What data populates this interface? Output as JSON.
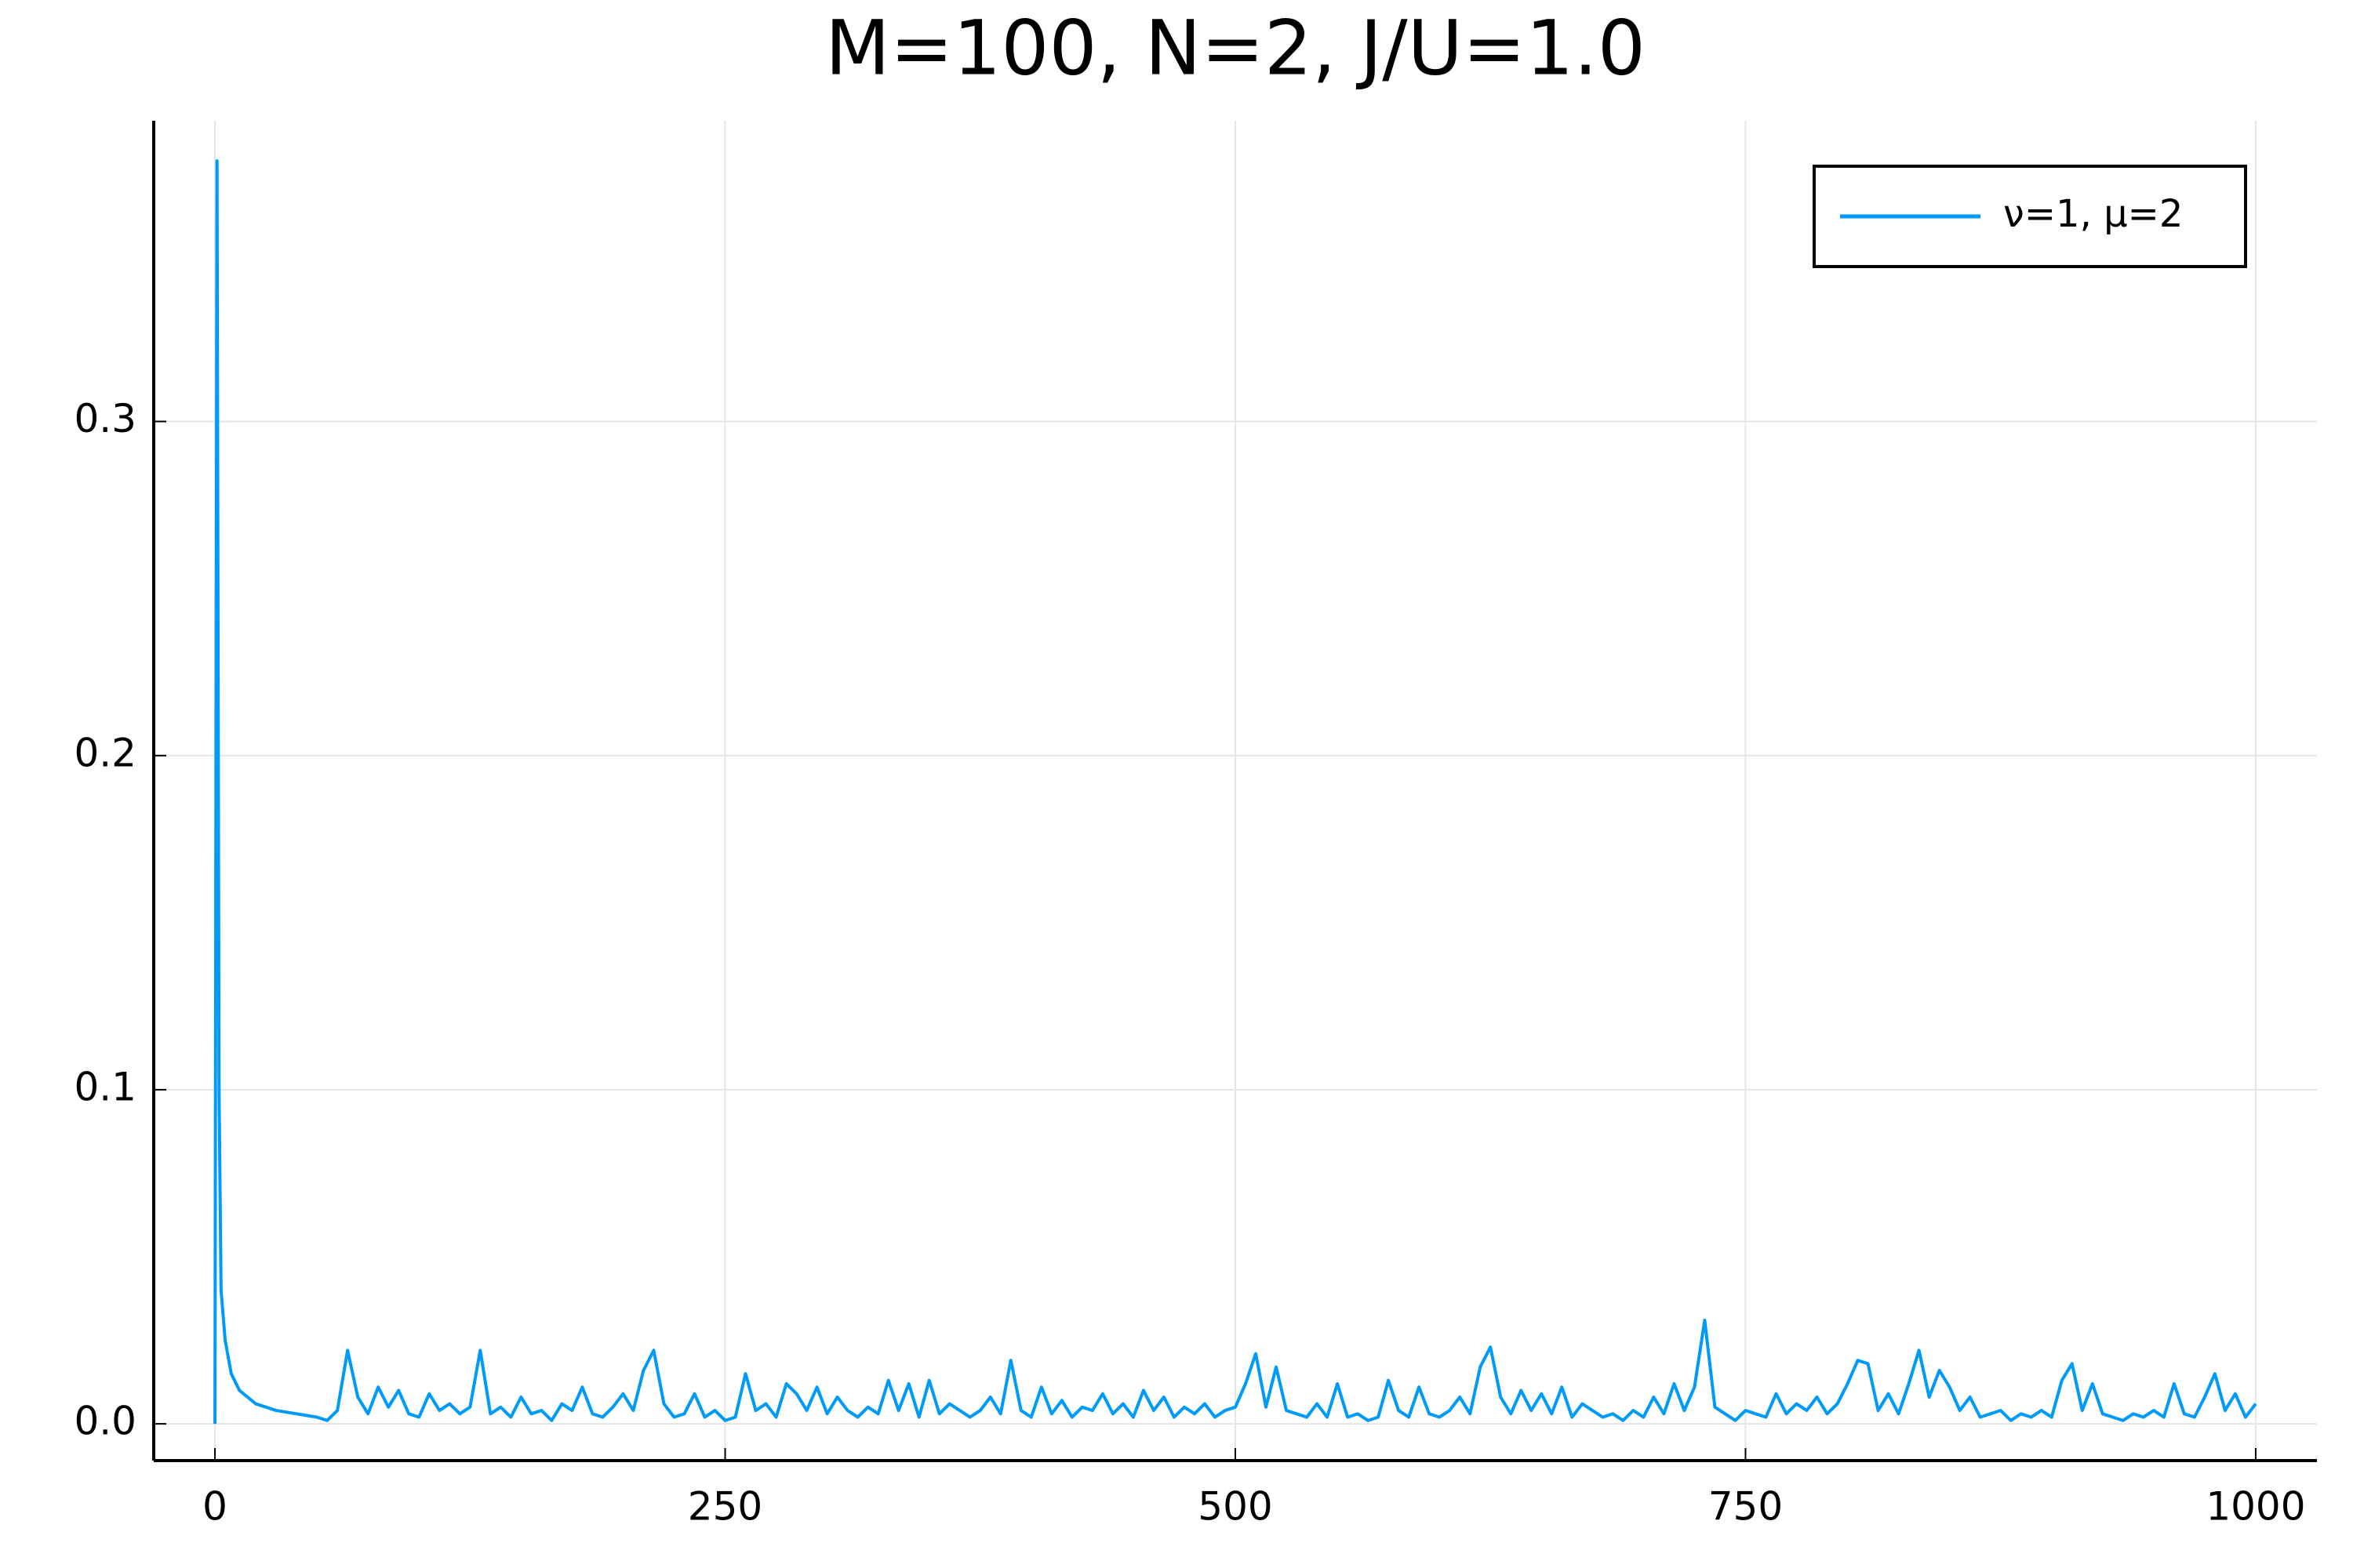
{
  "chart_data": {
    "type": "line",
    "title": "M=100, N=2, J/U=1.0",
    "x": [
      0,
      1,
      2,
      3,
      5,
      8,
      12,
      20,
      30,
      40,
      50,
      55,
      60,
      65,
      70,
      75,
      80,
      85,
      90,
      95,
      100,
      105,
      110,
      115,
      120,
      125,
      130,
      135,
      140,
      145,
      150,
      155,
      160,
      165,
      170,
      175,
      180,
      185,
      190,
      195,
      200,
      205,
      210,
      215,
      220,
      225,
      230,
      235,
      240,
      245,
      250,
      255,
      260,
      265,
      270,
      275,
      280,
      285,
      290,
      295,
      300,
      305,
      310,
      315,
      320,
      325,
      330,
      335,
      340,
      345,
      350,
      355,
      360,
      365,
      370,
      375,
      380,
      385,
      390,
      395,
      400,
      405,
      410,
      415,
      420,
      425,
      430,
      435,
      440,
      445,
      450,
      455,
      460,
      465,
      470,
      475,
      480,
      485,
      490,
      495,
      500,
      505,
      510,
      515,
      520,
      525,
      530,
      535,
      540,
      545,
      550,
      555,
      560,
      565,
      570,
      575,
      580,
      585,
      590,
      595,
      600,
      605,
      610,
      615,
      620,
      625,
      630,
      635,
      640,
      645,
      650,
      655,
      660,
      665,
      670,
      675,
      680,
      685,
      690,
      695,
      700,
      705,
      710,
      715,
      720,
      725,
      730,
      735,
      740,
      745,
      750,
      755,
      760,
      765,
      770,
      775,
      780,
      785,
      790,
      795,
      800,
      805,
      810,
      815,
      820,
      825,
      830,
      835,
      840,
      845,
      850,
      855,
      860,
      865,
      870,
      875,
      880,
      885,
      890,
      895,
      900,
      905,
      910,
      915,
      920,
      925,
      930,
      935,
      940,
      945,
      950,
      955,
      960,
      965,
      970,
      975,
      980,
      985,
      990,
      995,
      1000
    ],
    "series": [
      {
        "name": "ν=1, μ=2",
        "color": "#009af9",
        "values": [
          0,
          0.378,
          0.1,
          0.04,
          0.025,
          0.015,
          0.01,
          0.006,
          0.004,
          0.003,
          0.002,
          0.001,
          0.004,
          0.022,
          0.008,
          0.003,
          0.011,
          0.005,
          0.01,
          0.003,
          0.002,
          0.009,
          0.004,
          0.006,
          0.003,
          0.005,
          0.022,
          0.003,
          0.005,
          0.002,
          0.008,
          0.003,
          0.004,
          0.001,
          0.006,
          0.004,
          0.011,
          0.003,
          0.002,
          0.005,
          0.009,
          0.004,
          0.016,
          0.022,
          0.006,
          0.002,
          0.003,
          0.009,
          0.002,
          0.004,
          0.001,
          0.002,
          0.015,
          0.004,
          0.006,
          0.002,
          0.012,
          0.009,
          0.004,
          0.011,
          0.003,
          0.008,
          0.004,
          0.002,
          0.005,
          0.003,
          0.013,
          0.004,
          0.012,
          0.002,
          0.013,
          0.003,
          0.006,
          0.004,
          0.002,
          0.004,
          0.008,
          0.003,
          0.019,
          0.004,
          0.002,
          0.011,
          0.003,
          0.007,
          0.002,
          0.005,
          0.004,
          0.009,
          0.003,
          0.006,
          0.002,
          0.01,
          0.004,
          0.008,
          0.002,
          0.005,
          0.003,
          0.006,
          0.002,
          0.004,
          0.005,
          0.012,
          0.021,
          0.005,
          0.017,
          0.004,
          0.003,
          0.002,
          0.006,
          0.002,
          0.012,
          0.002,
          0.003,
          0.001,
          0.002,
          0.013,
          0.004,
          0.002,
          0.011,
          0.003,
          0.002,
          0.004,
          0.008,
          0.003,
          0.017,
          0.023,
          0.008,
          0.003,
          0.01,
          0.004,
          0.009,
          0.003,
          0.011,
          0.002,
          0.006,
          0.004,
          0.002,
          0.003,
          0.001,
          0.004,
          0.002,
          0.008,
          0.003,
          0.012,
          0.004,
          0.011,
          0.031,
          0.005,
          0.003,
          0.001,
          0.004,
          0.003,
          0.002,
          0.009,
          0.003,
          0.006,
          0.004,
          0.008,
          0.003,
          0.006,
          0.012,
          0.019,
          0.018,
          0.004,
          0.009,
          0.003,
          0.012,
          0.022,
          0.008,
          0.016,
          0.011,
          0.004,
          0.008,
          0.002,
          0.003,
          0.004,
          0.001,
          0.003,
          0.002,
          0.004,
          0.002,
          0.013,
          0.018,
          0.004,
          0.012,
          0.003,
          0.002,
          0.001,
          0.003,
          0.002,
          0.004,
          0.002,
          0.012,
          0.003,
          0.002,
          0.008,
          0.015,
          0.004,
          0.009,
          0.002,
          0.006
        ]
      }
    ],
    "xlim": [
      -30,
      1030
    ],
    "xticks": [
      0,
      250,
      500,
      750,
      1000
    ],
    "ylim": [
      -0.011,
      0.39
    ],
    "yticks": [
      {
        "value": 0,
        "label": "0.0"
      },
      0.1,
      0.2,
      0.3
    ],
    "grid": true,
    "legend": "top-right"
  }
}
